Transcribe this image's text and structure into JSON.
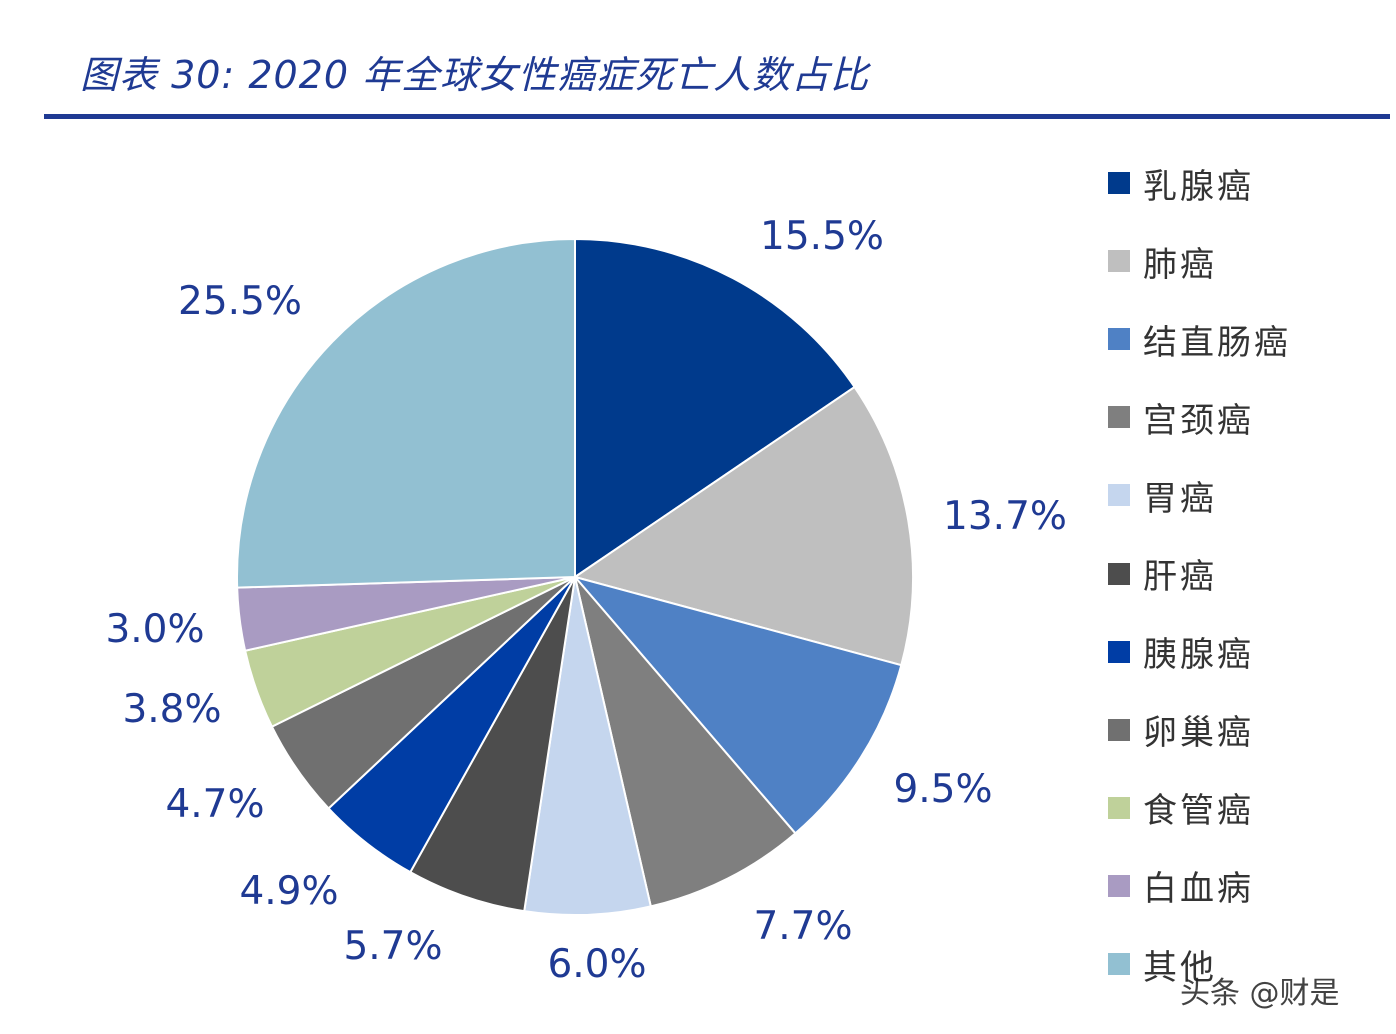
{
  "chart_data": {
    "type": "pie",
    "title": "图表 30: 2020 年全球女性癌症死亡人数占比",
    "start_angle": "12 o'clock, clockwise",
    "legend_position": "right",
    "label_color": "#1F3A93",
    "slices": [
      {
        "name": "乳腺癌",
        "value": 15.5,
        "label": "15.5%",
        "color": "#003A8C"
      },
      {
        "name": "肺癌",
        "value": 13.7,
        "label": "13.7%",
        "color": "#BFBFBF"
      },
      {
        "name": "结直肠癌",
        "value": 9.5,
        "label": "9.5%",
        "color": "#4F81C5"
      },
      {
        "name": "宫颈癌",
        "value": 7.7,
        "label": "7.7%",
        "color": "#7F7F7F"
      },
      {
        "name": "胃癌",
        "value": 6.0,
        "label": "6.0%",
        "color": "#C5D6EE"
      },
      {
        "name": "肝癌",
        "value": 5.7,
        "label": "5.7%",
        "color": "#4D4D4D"
      },
      {
        "name": "胰腺癌",
        "value": 4.9,
        "label": "4.9%",
        "color": "#003DA5"
      },
      {
        "name": "卵巢癌",
        "value": 4.7,
        "label": "4.7%",
        "color": "#707070"
      },
      {
        "name": "食管癌",
        "value": 3.8,
        "label": "3.8%",
        "color": "#BFD19A"
      },
      {
        "name": "白血病",
        "value": 3.0,
        "label": "3.0%",
        "color": "#A99BC2"
      },
      {
        "name": "其他",
        "value": 25.5,
        "label": "25.5%",
        "color": "#92C0D2"
      }
    ]
  },
  "watermark": "头条 @财是"
}
